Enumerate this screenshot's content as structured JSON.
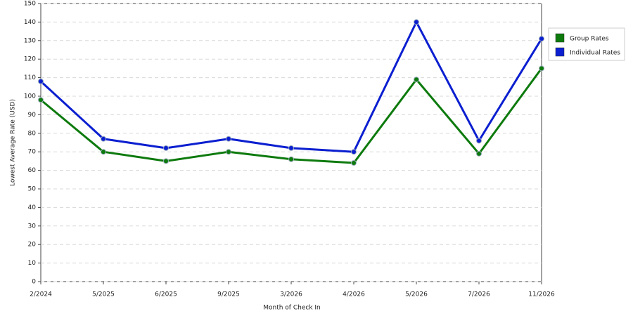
{
  "chart_data": {
    "type": "line",
    "x_label": "Month of Check In",
    "y_label": "Lowest Average Rate (USD)",
    "categories": [
      "2/2024",
      "5/2025",
      "6/2025",
      "9/2025",
      "3/2026",
      "4/2026",
      "5/2026",
      "7/2026",
      "11/2026"
    ],
    "series": [
      {
        "name": "Group Rates",
        "color": "#0d7a0d",
        "values": [
          98,
          70,
          65,
          70,
          66,
          64,
          109,
          69,
          115
        ]
      },
      {
        "name": "Individual Rates",
        "color": "#0b1fd0",
        "values": [
          108,
          77,
          72,
          77,
          72,
          70,
          140,
          76,
          131
        ]
      }
    ],
    "ylim": [
      0,
      150
    ],
    "yticks": [
      0,
      10,
      20,
      30,
      40,
      50,
      60,
      70,
      80,
      90,
      100,
      110,
      120,
      130,
      140,
      150
    ],
    "grid": true,
    "legend": "right"
  }
}
